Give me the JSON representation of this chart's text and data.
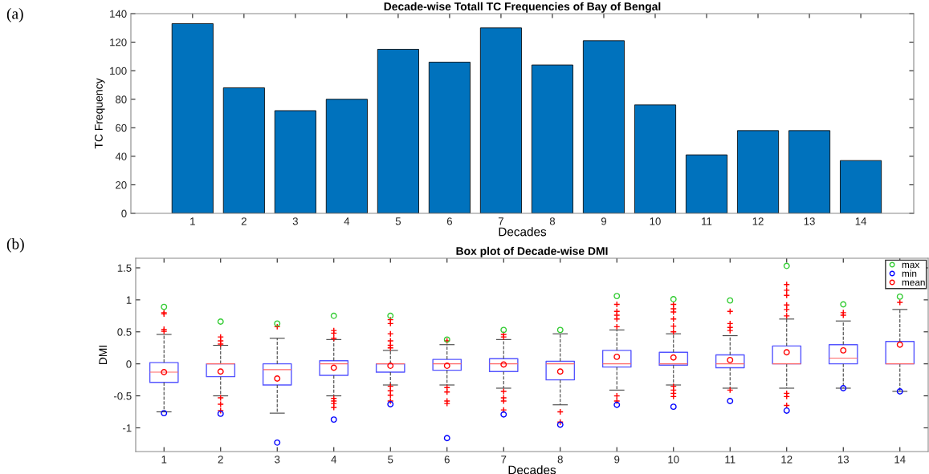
{
  "chart_data": [
    {
      "type": "bar",
      "title": "Decade-wise Totall TC Frequencies of Bay of Bengal",
      "xlabel": "Decades",
      "ylabel": "TC Frequency",
      "categories": [
        "1",
        "2",
        "3",
        "4",
        "5",
        "6",
        "7",
        "8",
        "9",
        "10",
        "11",
        "12",
        "13",
        "14"
      ],
      "values": [
        133,
        88,
        72,
        80,
        115,
        106,
        130,
        104,
        121,
        76,
        41,
        58,
        58,
        37
      ],
      "color": "#0072bd",
      "ylim": [
        0,
        140
      ],
      "yticks": [
        0,
        20,
        40,
        60,
        80,
        100,
        120,
        140
      ],
      "grid": false,
      "annotations": [
        "(a)"
      ]
    },
    {
      "type": "box",
      "title": "Box plot of Decade-wise DMI",
      "xlabel": "Decades",
      "ylabel": "DMI",
      "categories": [
        "1",
        "2",
        "3",
        "4",
        "5",
        "6",
        "7",
        "8",
        "9",
        "10",
        "11",
        "12",
        "13",
        "14"
      ],
      "boxes": [
        {
          "low": -0.75,
          "q1": -0.29,
          "median": -0.13,
          "q3": 0.02,
          "high": 0.46,
          "outliers": [
            0.8,
            0.78,
            0.54,
            0.51
          ]
        },
        {
          "low": -0.5,
          "q1": -0.2,
          "median": 0,
          "q3": 0,
          "high": 0.29,
          "outliers": [
            0.42,
            0.36,
            0.31,
            -0.53,
            -0.63,
            -0.73
          ]
        },
        {
          "low": -0.77,
          "q1": -0.33,
          "median": -0.09,
          "q3": 0,
          "high": 0.4,
          "outliers": [
            0.58
          ]
        },
        {
          "low": -0.5,
          "q1": -0.18,
          "median": 0,
          "q3": 0.05,
          "high": 0.38,
          "outliers": [
            0.52,
            0.48,
            0.4,
            -0.54,
            -0.58,
            -0.62,
            -0.68
          ]
        },
        {
          "low": -0.33,
          "q1": -0.13,
          "median": 0,
          "q3": 0,
          "high": 0.21,
          "outliers": [
            0.69,
            0.63,
            0.47,
            0.36,
            0.29,
            0.25,
            -0.35,
            -0.42,
            -0.49,
            -0.58
          ]
        },
        {
          "low": -0.33,
          "q1": -0.1,
          "median": 0,
          "q3": 0.07,
          "high": 0.3,
          "outliers": [
            0.36,
            -0.37,
            -0.44,
            -0.58,
            -0.62
          ]
        },
        {
          "low": -0.38,
          "q1": -0.12,
          "median": 0,
          "q3": 0.08,
          "high": 0.38,
          "outliers": [
            0.46,
            0.42,
            -0.43,
            -0.53,
            -0.58,
            -0.72
          ]
        },
        {
          "low": -0.64,
          "q1": -0.25,
          "median": 0,
          "q3": 0.04,
          "high": 0.47,
          "outliers": [
            -0.75,
            -0.91
          ]
        },
        {
          "low": -0.41,
          "q1": -0.05,
          "median": 0,
          "q3": 0.21,
          "high": 0.53,
          "outliers": [
            0.93,
            0.82,
            0.76,
            0.7,
            0.58,
            -0.5,
            -0.58
          ]
        },
        {
          "low": -0.33,
          "q1": -0.02,
          "median": 0,
          "q3": 0.18,
          "high": 0.47,
          "outliers": [
            0.93,
            0.86,
            0.81,
            0.7,
            0.59,
            0.5,
            -0.35,
            -0.41,
            -0.46,
            -0.51
          ]
        },
        {
          "low": -0.38,
          "q1": -0.06,
          "median": 0,
          "q3": 0.14,
          "high": 0.44,
          "outliers": [
            0.82,
            0.63,
            0.57,
            0.52,
            -0.41
          ]
        },
        {
          "low": -0.38,
          "q1": 0,
          "median": 0,
          "q3": 0.28,
          "high": 0.7,
          "outliers": [
            1.24,
            1.15,
            1.07,
            0.92,
            0.85,
            0.75,
            -0.46,
            -0.51,
            -0.65
          ]
        },
        {
          "low": -0.38,
          "q1": 0,
          "median": 0.09,
          "q3": 0.3,
          "high": 0.67,
          "outliers": [
            0.8,
            0.76
          ]
        },
        {
          "low": -0.43,
          "q1": 0,
          "median": 0,
          "q3": 0.35,
          "high": 0.85,
          "outliers": [
            0.96
          ]
        }
      ],
      "series": [
        {
          "name": "max",
          "type": "scatter",
          "color": "#33cc33",
          "x": [
            "1",
            "2",
            "3",
            "4",
            "5",
            "6",
            "7",
            "8",
            "9",
            "10",
            "11",
            "12",
            "13",
            "14"
          ],
          "values": [
            0.89,
            0.66,
            0.63,
            0.75,
            0.75,
            0.38,
            0.53,
            0.53,
            1.06,
            1.01,
            0.99,
            1.53,
            0.93,
            1.05
          ]
        },
        {
          "name": "min",
          "type": "scatter",
          "color": "#0000ff",
          "x": [
            "1",
            "2",
            "3",
            "4",
            "5",
            "6",
            "7",
            "8",
            "9",
            "10",
            "11",
            "12",
            "13",
            "14"
          ],
          "values": [
            -0.77,
            -0.78,
            -1.23,
            -0.87,
            -0.63,
            -1.16,
            -0.79,
            -0.95,
            -0.64,
            -0.67,
            -0.58,
            -0.73,
            -0.38,
            -0.43
          ]
        },
        {
          "name": "mean",
          "type": "scatter",
          "color": "#ff0000",
          "x": [
            "1",
            "2",
            "3",
            "4",
            "5",
            "6",
            "7",
            "8",
            "9",
            "10",
            "11",
            "12",
            "13",
            "14"
          ],
          "values": [
            -0.13,
            -0.12,
            -0.23,
            -0.06,
            -0.03,
            -0.03,
            -0.01,
            -0.12,
            0.11,
            0.1,
            0.06,
            0.18,
            0.21,
            0.3
          ]
        }
      ],
      "marker": "circle",
      "legend": "top right",
      "grid": false,
      "ylim": [
        -1.37,
        1.65
      ],
      "yticks": [
        -1,
        -0.5,
        0,
        0.5,
        1,
        1.5
      ],
      "annotations": [
        "(b)"
      ]
    }
  ]
}
